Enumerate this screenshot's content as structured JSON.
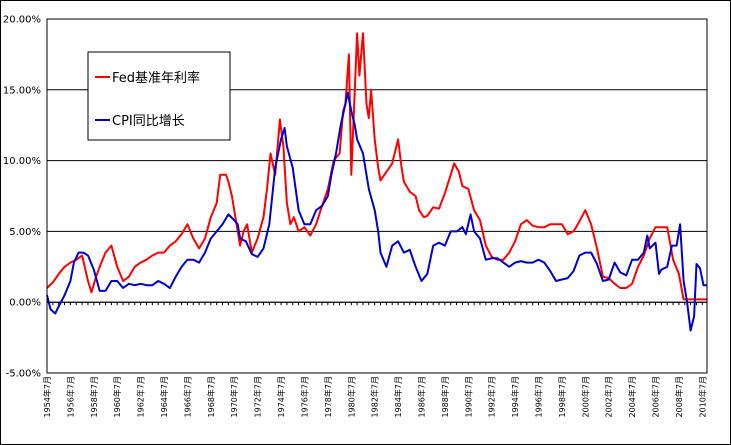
{
  "chart_data": {
    "type": "line",
    "title": "",
    "xlabel": "",
    "ylabel": "",
    "ylim": [
      -5,
      20
    ],
    "xlim": [
      "1954年7月",
      "2010年11月"
    ],
    "y_ticks": [
      "-5.00%",
      "0.00%",
      "5.00%",
      "10.00%",
      "15.00%",
      "20.00%"
    ],
    "y_tick_values": [
      -5,
      0,
      5,
      10,
      15,
      20
    ],
    "x_ticks": [
      "1954年7月",
      "1956年7月",
      "1958年7月",
      "1960年7月",
      "1962年7月",
      "1964年7月",
      "1966年7月",
      "1968年7月",
      "1970年7月",
      "1972年7月",
      "1974年7月",
      "1976年7月",
      "1978年7月",
      "1980年7月",
      "1982年7月",
      "1984年7月",
      "1986年7月",
      "1988年7月",
      "1990年7月",
      "1992年7月",
      "1994年7月",
      "1996年7月",
      "1998年7月",
      "2000年7月",
      "2002年7月",
      "2004年7月",
      "2006年7月",
      "2008年7月",
      "2010年7月"
    ],
    "x_tick_values": [
      1954.5,
      1956.5,
      1958.5,
      1960.5,
      1962.5,
      1964.5,
      1966.5,
      1968.5,
      1970.5,
      1972.5,
      1974.5,
      1976.5,
      1978.5,
      1980.5,
      1982.5,
      1984.5,
      1986.5,
      1988.5,
      1990.5,
      1992.5,
      1994.5,
      1996.5,
      1998.5,
      2000.5,
      2002.5,
      2004.5,
      2006.5,
      2008.5,
      2010.5
    ],
    "grid": true,
    "legend_position": "top-left",
    "series": [
      {
        "name": "Fed基准年利率",
        "color": "#ff0000",
        "points": [
          [
            1954.5,
            1.0
          ],
          [
            1955.0,
            1.4
          ],
          [
            1955.5,
            2.0
          ],
          [
            1956.0,
            2.5
          ],
          [
            1956.5,
            2.8
          ],
          [
            1957.0,
            3.0
          ],
          [
            1957.5,
            3.3
          ],
          [
            1958.0,
            1.5
          ],
          [
            1958.3,
            0.7
          ],
          [
            1958.7,
            1.8
          ],
          [
            1959.0,
            2.5
          ],
          [
            1959.5,
            3.5
          ],
          [
            1960.0,
            4.0
          ],
          [
            1960.5,
            2.5
          ],
          [
            1961.0,
            1.5
          ],
          [
            1961.5,
            1.8
          ],
          [
            1962.0,
            2.5
          ],
          [
            1962.5,
            2.8
          ],
          [
            1963.0,
            3.0
          ],
          [
            1963.5,
            3.3
          ],
          [
            1964.0,
            3.5
          ],
          [
            1964.5,
            3.5
          ],
          [
            1965.0,
            4.0
          ],
          [
            1965.5,
            4.3
          ],
          [
            1966.0,
            4.8
          ],
          [
            1966.5,
            5.5
          ],
          [
            1967.0,
            4.5
          ],
          [
            1967.5,
            3.8
          ],
          [
            1968.0,
            4.5
          ],
          [
            1968.5,
            6.0
          ],
          [
            1969.0,
            7.0
          ],
          [
            1969.3,
            9.0
          ],
          [
            1969.8,
            9.0
          ],
          [
            1970.0,
            8.5
          ],
          [
            1970.3,
            7.5
          ],
          [
            1970.6,
            6.0
          ],
          [
            1971.0,
            4.0
          ],
          [
            1971.3,
            5.0
          ],
          [
            1971.6,
            5.5
          ],
          [
            1972.0,
            3.5
          ],
          [
            1972.5,
            4.5
          ],
          [
            1973.0,
            6.0
          ],
          [
            1973.3,
            8.0
          ],
          [
            1973.6,
            10.5
          ],
          [
            1974.0,
            9.0
          ],
          [
            1974.4,
            12.9
          ],
          [
            1974.7,
            11.0
          ],
          [
            1975.0,
            7.0
          ],
          [
            1975.3,
            5.5
          ],
          [
            1975.6,
            6.0
          ],
          [
            1976.0,
            5.0
          ],
          [
            1976.5,
            5.3
          ],
          [
            1977.0,
            4.7
          ],
          [
            1977.5,
            5.5
          ],
          [
            1978.0,
            6.8
          ],
          [
            1978.5,
            8.0
          ],
          [
            1979.0,
            10.0
          ],
          [
            1979.5,
            10.5
          ],
          [
            1979.8,
            13.5
          ],
          [
            1980.0,
            14.0
          ],
          [
            1980.3,
            17.5
          ],
          [
            1980.5,
            9.0
          ],
          [
            1980.8,
            15.0
          ],
          [
            1981.0,
            19.0
          ],
          [
            1981.2,
            16.0
          ],
          [
            1981.5,
            19.0
          ],
          [
            1981.8,
            14.0
          ],
          [
            1982.0,
            13.0
          ],
          [
            1982.2,
            15.0
          ],
          [
            1982.5,
            11.5
          ],
          [
            1982.8,
            9.5
          ],
          [
            1983.0,
            8.6
          ],
          [
            1983.5,
            9.2
          ],
          [
            1984.0,
            9.8
          ],
          [
            1984.5,
            11.5
          ],
          [
            1984.8,
            9.5
          ],
          [
            1985.0,
            8.5
          ],
          [
            1985.5,
            7.8
          ],
          [
            1986.0,
            7.5
          ],
          [
            1986.3,
            6.5
          ],
          [
            1986.7,
            6.0
          ],
          [
            1987.0,
            6.1
          ],
          [
            1987.5,
            6.7
          ],
          [
            1988.0,
            6.6
          ],
          [
            1988.5,
            7.7
          ],
          [
            1989.0,
            9.0
          ],
          [
            1989.3,
            9.8
          ],
          [
            1989.7,
            9.2
          ],
          [
            1990.0,
            8.2
          ],
          [
            1990.5,
            8.0
          ],
          [
            1991.0,
            6.5
          ],
          [
            1991.5,
            5.8
          ],
          [
            1992.0,
            4.0
          ],
          [
            1992.5,
            3.2
          ],
          [
            1993.0,
            3.0
          ],
          [
            1993.5,
            3.0
          ],
          [
            1994.0,
            3.5
          ],
          [
            1994.5,
            4.3
          ],
          [
            1995.0,
            5.5
          ],
          [
            1995.5,
            5.8
          ],
          [
            1996.0,
            5.4
          ],
          [
            1996.5,
            5.3
          ],
          [
            1997.0,
            5.3
          ],
          [
            1997.5,
            5.5
          ],
          [
            1998.0,
            5.5
          ],
          [
            1998.5,
            5.5
          ],
          [
            1999.0,
            4.8
          ],
          [
            1999.5,
            5.0
          ],
          [
            2000.0,
            5.7
          ],
          [
            2000.5,
            6.5
          ],
          [
            2001.0,
            5.5
          ],
          [
            2001.5,
            3.8
          ],
          [
            2002.0,
            1.8
          ],
          [
            2002.5,
            1.7
          ],
          [
            2003.0,
            1.3
          ],
          [
            2003.5,
            1.0
          ],
          [
            2004.0,
            1.0
          ],
          [
            2004.5,
            1.3
          ],
          [
            2005.0,
            2.5
          ],
          [
            2005.5,
            3.3
          ],
          [
            2006.0,
            4.5
          ],
          [
            2006.5,
            5.3
          ],
          [
            2007.0,
            5.3
          ],
          [
            2007.5,
            5.3
          ],
          [
            2008.0,
            3.0
          ],
          [
            2008.5,
            2.0
          ],
          [
            2008.9,
            0.2
          ],
          [
            2009.5,
            0.2
          ],
          [
            2010.0,
            0.2
          ],
          [
            2010.9,
            0.2
          ]
        ]
      },
      {
        "name": "CPI同比增长",
        "color": "#0000cc",
        "points": [
          [
            1954.5,
            0.5
          ],
          [
            1954.8,
            -0.5
          ],
          [
            1955.2,
            -0.8
          ],
          [
            1955.5,
            -0.3
          ],
          [
            1956.0,
            0.5
          ],
          [
            1956.5,
            1.5
          ],
          [
            1956.8,
            2.8
          ],
          [
            1957.2,
            3.5
          ],
          [
            1957.6,
            3.5
          ],
          [
            1958.0,
            3.3
          ],
          [
            1958.5,
            2.3
          ],
          [
            1959.0,
            0.8
          ],
          [
            1959.5,
            0.8
          ],
          [
            1960.0,
            1.5
          ],
          [
            1960.5,
            1.5
          ],
          [
            1961.0,
            1.0
          ],
          [
            1961.5,
            1.3
          ],
          [
            1962.0,
            1.2
          ],
          [
            1962.5,
            1.3
          ],
          [
            1963.0,
            1.2
          ],
          [
            1963.5,
            1.2
          ],
          [
            1964.0,
            1.5
          ],
          [
            1964.5,
            1.3
          ],
          [
            1965.0,
            1.0
          ],
          [
            1965.5,
            1.8
          ],
          [
            1966.0,
            2.5
          ],
          [
            1966.5,
            3.0
          ],
          [
            1967.0,
            3.0
          ],
          [
            1967.5,
            2.8
          ],
          [
            1968.0,
            3.5
          ],
          [
            1968.5,
            4.5
          ],
          [
            1969.0,
            5.0
          ],
          [
            1969.5,
            5.5
          ],
          [
            1970.0,
            6.2
          ],
          [
            1970.5,
            5.8
          ],
          [
            1970.8,
            5.5
          ],
          [
            1971.0,
            4.5
          ],
          [
            1971.5,
            4.3
          ],
          [
            1972.0,
            3.4
          ],
          [
            1972.5,
            3.2
          ],
          [
            1973.0,
            3.8
          ],
          [
            1973.5,
            5.5
          ],
          [
            1974.0,
            9.5
          ],
          [
            1974.5,
            11.5
          ],
          [
            1974.8,
            12.3
          ],
          [
            1975.0,
            11.0
          ],
          [
            1975.5,
            9.5
          ],
          [
            1976.0,
            6.5
          ],
          [
            1976.5,
            5.5
          ],
          [
            1977.0,
            5.5
          ],
          [
            1977.5,
            6.5
          ],
          [
            1978.0,
            6.8
          ],
          [
            1978.5,
            7.5
          ],
          [
            1978.8,
            9.0
          ],
          [
            1979.2,
            10.5
          ],
          [
            1979.6,
            12.5
          ],
          [
            1980.0,
            14.0
          ],
          [
            1980.2,
            14.8
          ],
          [
            1980.5,
            13.5
          ],
          [
            1980.8,
            12.5
          ],
          [
            1981.0,
            11.5
          ],
          [
            1981.5,
            10.5
          ],
          [
            1982.0,
            8.0
          ],
          [
            1982.5,
            6.5
          ],
          [
            1982.8,
            5.0
          ],
          [
            1983.0,
            3.5
          ],
          [
            1983.5,
            2.5
          ],
          [
            1984.0,
            4.0
          ],
          [
            1984.5,
            4.3
          ],
          [
            1985.0,
            3.5
          ],
          [
            1985.5,
            3.7
          ],
          [
            1986.0,
            2.5
          ],
          [
            1986.5,
            1.5
          ],
          [
            1987.0,
            2.0
          ],
          [
            1987.5,
            4.0
          ],
          [
            1988.0,
            4.2
          ],
          [
            1988.5,
            4.0
          ],
          [
            1989.0,
            5.0
          ],
          [
            1989.5,
            5.0
          ],
          [
            1990.0,
            5.3
          ],
          [
            1990.3,
            4.8
          ],
          [
            1990.7,
            6.2
          ],
          [
            1991.0,
            5.0
          ],
          [
            1991.5,
            4.5
          ],
          [
            1992.0,
            3.0
          ],
          [
            1992.5,
            3.1
          ],
          [
            1993.0,
            3.1
          ],
          [
            1993.5,
            2.8
          ],
          [
            1994.0,
            2.5
          ],
          [
            1994.5,
            2.8
          ],
          [
            1995.0,
            2.9
          ],
          [
            1995.5,
            2.8
          ],
          [
            1996.0,
            2.8
          ],
          [
            1996.5,
            3.0
          ],
          [
            1997.0,
            2.8
          ],
          [
            1997.5,
            2.2
          ],
          [
            1998.0,
            1.5
          ],
          [
            1998.5,
            1.6
          ],
          [
            1999.0,
            1.7
          ],
          [
            1999.5,
            2.2
          ],
          [
            2000.0,
            3.3
          ],
          [
            2000.5,
            3.5
          ],
          [
            2001.0,
            3.5
          ],
          [
            2001.5,
            2.7
          ],
          [
            2002.0,
            1.5
          ],
          [
            2002.5,
            1.6
          ],
          [
            2003.0,
            2.8
          ],
          [
            2003.5,
            2.1
          ],
          [
            2004.0,
            1.9
          ],
          [
            2004.5,
            3.0
          ],
          [
            2005.0,
            3.0
          ],
          [
            2005.5,
            3.5
          ],
          [
            2005.8,
            4.7
          ],
          [
            2006.0,
            3.8
          ],
          [
            2006.5,
            4.2
          ],
          [
            2006.8,
            2.0
          ],
          [
            2007.0,
            2.3
          ],
          [
            2007.5,
            2.5
          ],
          [
            2007.9,
            4.0
          ],
          [
            2008.3,
            4.0
          ],
          [
            2008.6,
            5.5
          ],
          [
            2008.9,
            1.5
          ],
          [
            2009.2,
            0.0
          ],
          [
            2009.5,
            -2.0
          ],
          [
            2009.8,
            -1.0
          ],
          [
            2010.0,
            2.7
          ],
          [
            2010.3,
            2.4
          ],
          [
            2010.6,
            1.2
          ],
          [
            2010.9,
            1.2
          ]
        ]
      }
    ]
  }
}
